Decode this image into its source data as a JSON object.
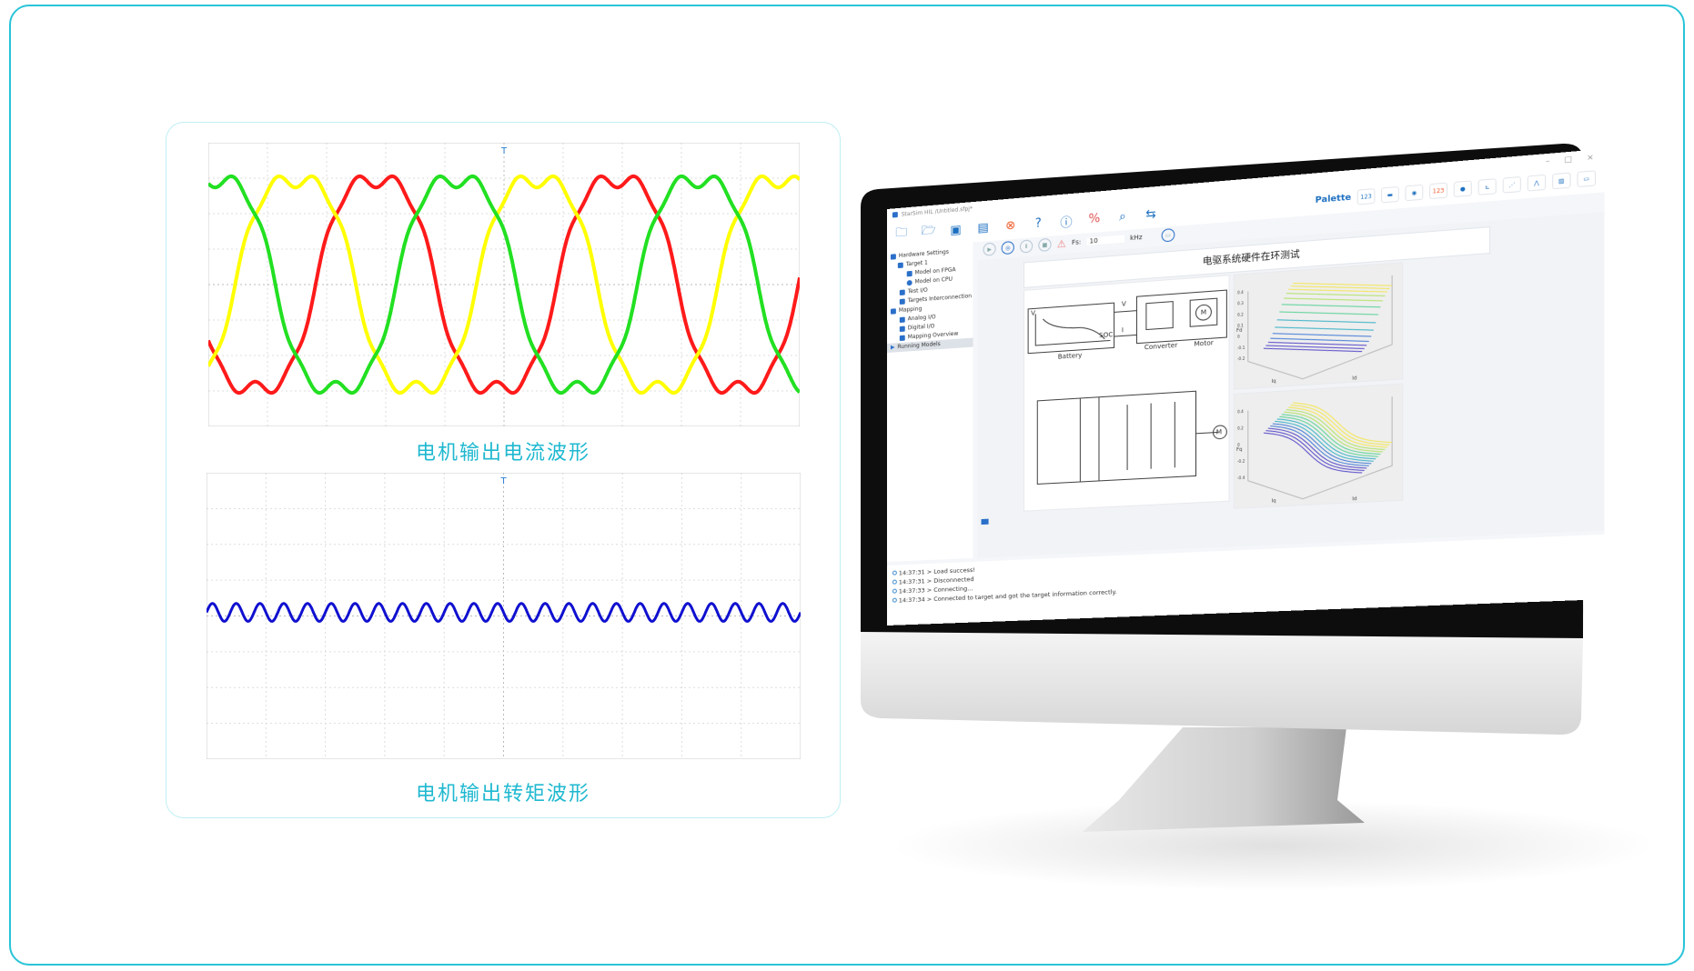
{
  "colors": {
    "accent": "#1fb8d0",
    "frame": "#29c4d8",
    "phase_a": "#ff1a1a",
    "phase_b": "#ffff00",
    "phase_c": "#22e022",
    "torque": "#1010d0"
  },
  "left_panel": {
    "current_caption": "电机输出电流波形",
    "torque_caption": "电机输出转矩波形",
    "trigger_marker": "T"
  },
  "chart_data": [
    {
      "type": "line",
      "title": "",
      "xlabel": "",
      "ylabel": "",
      "grid": true,
      "x_divisions": 10,
      "y_divisions": 8,
      "ylim": [
        -4,
        4
      ],
      "series": [
        {
          "color": "#ff1a1a",
          "amplitude_div": 3.3,
          "cycles": 2.45,
          "phase_deg": 200
        },
        {
          "color": "#ffff00",
          "amplitude_div": 3.3,
          "cycles": 2.45,
          "phase_deg": 320
        },
        {
          "color": "#22e022",
          "amplitude_div": 3.3,
          "cycles": 2.45,
          "phase_deg": 80
        }
      ]
    },
    {
      "type": "line",
      "title": "",
      "xlabel": "",
      "ylabel": "",
      "grid": true,
      "x_divisions": 10,
      "y_divisions": 8,
      "ylim": [
        -4,
        4
      ],
      "series": [
        {
          "color": "#1010d0",
          "offset_div": 0.1,
          "amplitude_div": 0.25,
          "cycles": 25
        }
      ]
    }
  ],
  "app": {
    "window_title": "StarSim HIL /Untitled.sfpj*",
    "toolbar_icons": [
      "new-project-icon",
      "open-folder-icon",
      "save-icon",
      "save-as-icon",
      "close-icon",
      "help-icon",
      "info-icon",
      "disconnect-icon",
      "inspect-icon",
      "transfer-icon"
    ],
    "palette_label": "Palette",
    "palette_items": [
      "123",
      "label",
      "toggle",
      "123",
      "led",
      "chart",
      "xy-chart",
      "scope",
      "image",
      "panel"
    ],
    "fs_label": "Fs:",
    "fs_value": "10",
    "fs_unit": "kHz",
    "tree": [
      {
        "label": "Hardware Settings",
        "level": 0
      },
      {
        "label": "Target 1",
        "level": 1
      },
      {
        "label": "Model on FPGA",
        "level": 2
      },
      {
        "label": "Model on CPU",
        "level": 2
      },
      {
        "label": "Test I/O",
        "level": 1
      },
      {
        "label": "Targets Interconnection",
        "level": 1
      },
      {
        "label": "Mapping",
        "level": 0
      },
      {
        "label": "Analog I/O",
        "level": 1
      },
      {
        "label": "Digital I/O",
        "level": 1
      },
      {
        "label": "Mapping Overview",
        "level": 1
      },
      {
        "label": "Running Models",
        "level": 0
      }
    ],
    "canvas_title": "电驱系统硬件在环测试",
    "diagram": {
      "battery": "Battery",
      "v_axis": "V",
      "soc": "SOC",
      "v_signal": "V",
      "i_signal": "I",
      "converter": "Converter",
      "motor": "Motor",
      "motor_symbol": "M"
    },
    "plots": [
      {
        "zlabel": "Fd",
        "xlabel": "Id",
        "ylabel": "Iq",
        "zticks": [
          "0.4",
          "0.3",
          "0.2",
          "0.1",
          "0",
          "-0.1",
          "-0.2"
        ]
      },
      {
        "zlabel": "Fq",
        "xlabel": "Id",
        "ylabel": "Iq",
        "zticks": [
          "0.4",
          "0.2",
          "0",
          "-0.2",
          "-0.4"
        ]
      }
    ],
    "log": [
      "14:37:31 > Load success!",
      "14:37:31 > Disconnected",
      "14:37:33 > Connecting...",
      "14:37:34 > Connected to target and got the target information correctly."
    ]
  }
}
